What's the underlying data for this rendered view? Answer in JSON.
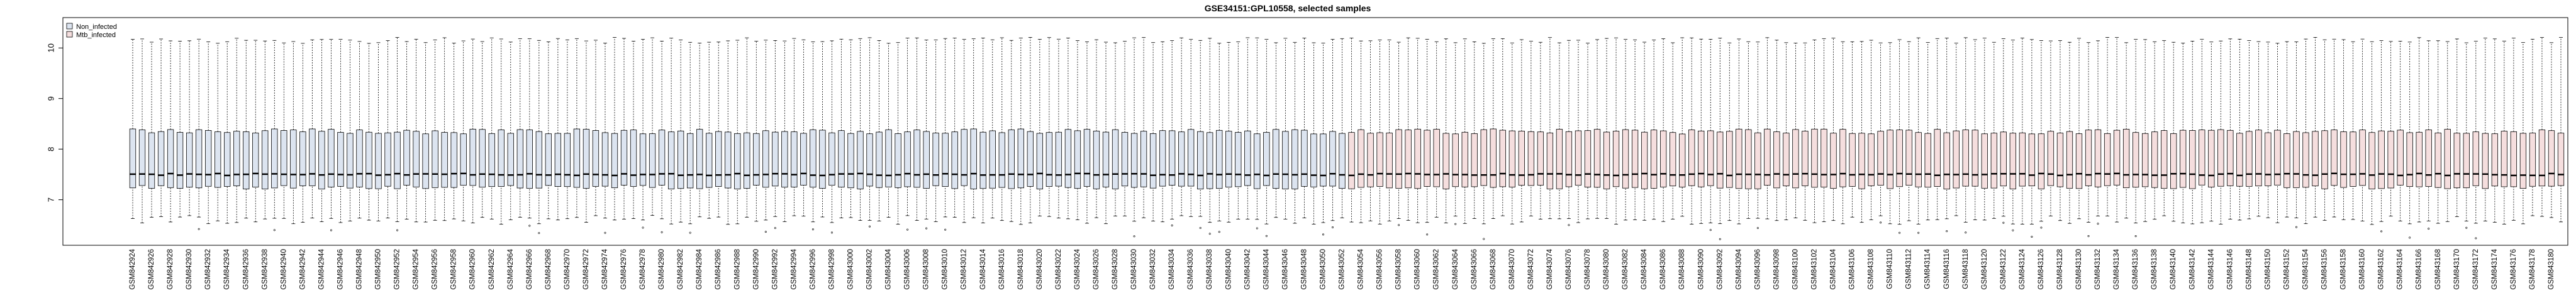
{
  "chart_data": {
    "type": "boxplot",
    "title": "GSE34151:GPL10558, selected samples",
    "xlabel": "",
    "ylabel": "",
    "ylim": [
      6.1,
      10.6
    ],
    "yticks": [
      7,
      8,
      9,
      10
    ],
    "grid": false,
    "legend": {
      "placement": "top-left",
      "entries": [
        {
          "label": "Non_infected",
          "color": "#dce4f0"
        },
        {
          "label": "Mtb_infected",
          "color": "#f5dede"
        }
      ]
    },
    "groups": [
      {
        "name": "Non_infected",
        "fill": "#dce4f0",
        "first_gsm": 842924,
        "count": 129
      },
      {
        "name": "Mtb_infected",
        "fill": "#f5dede",
        "first_gsm": 843053,
        "count": 129
      }
    ],
    "box_stats_typical": {
      "whisker_low": 6.6,
      "q1": 7.25,
      "median": 7.5,
      "q3": 8.35,
      "whisker_high": 10.15
    },
    "sample_label_prefix": "GSM",
    "sample_label_step": 2
  }
}
